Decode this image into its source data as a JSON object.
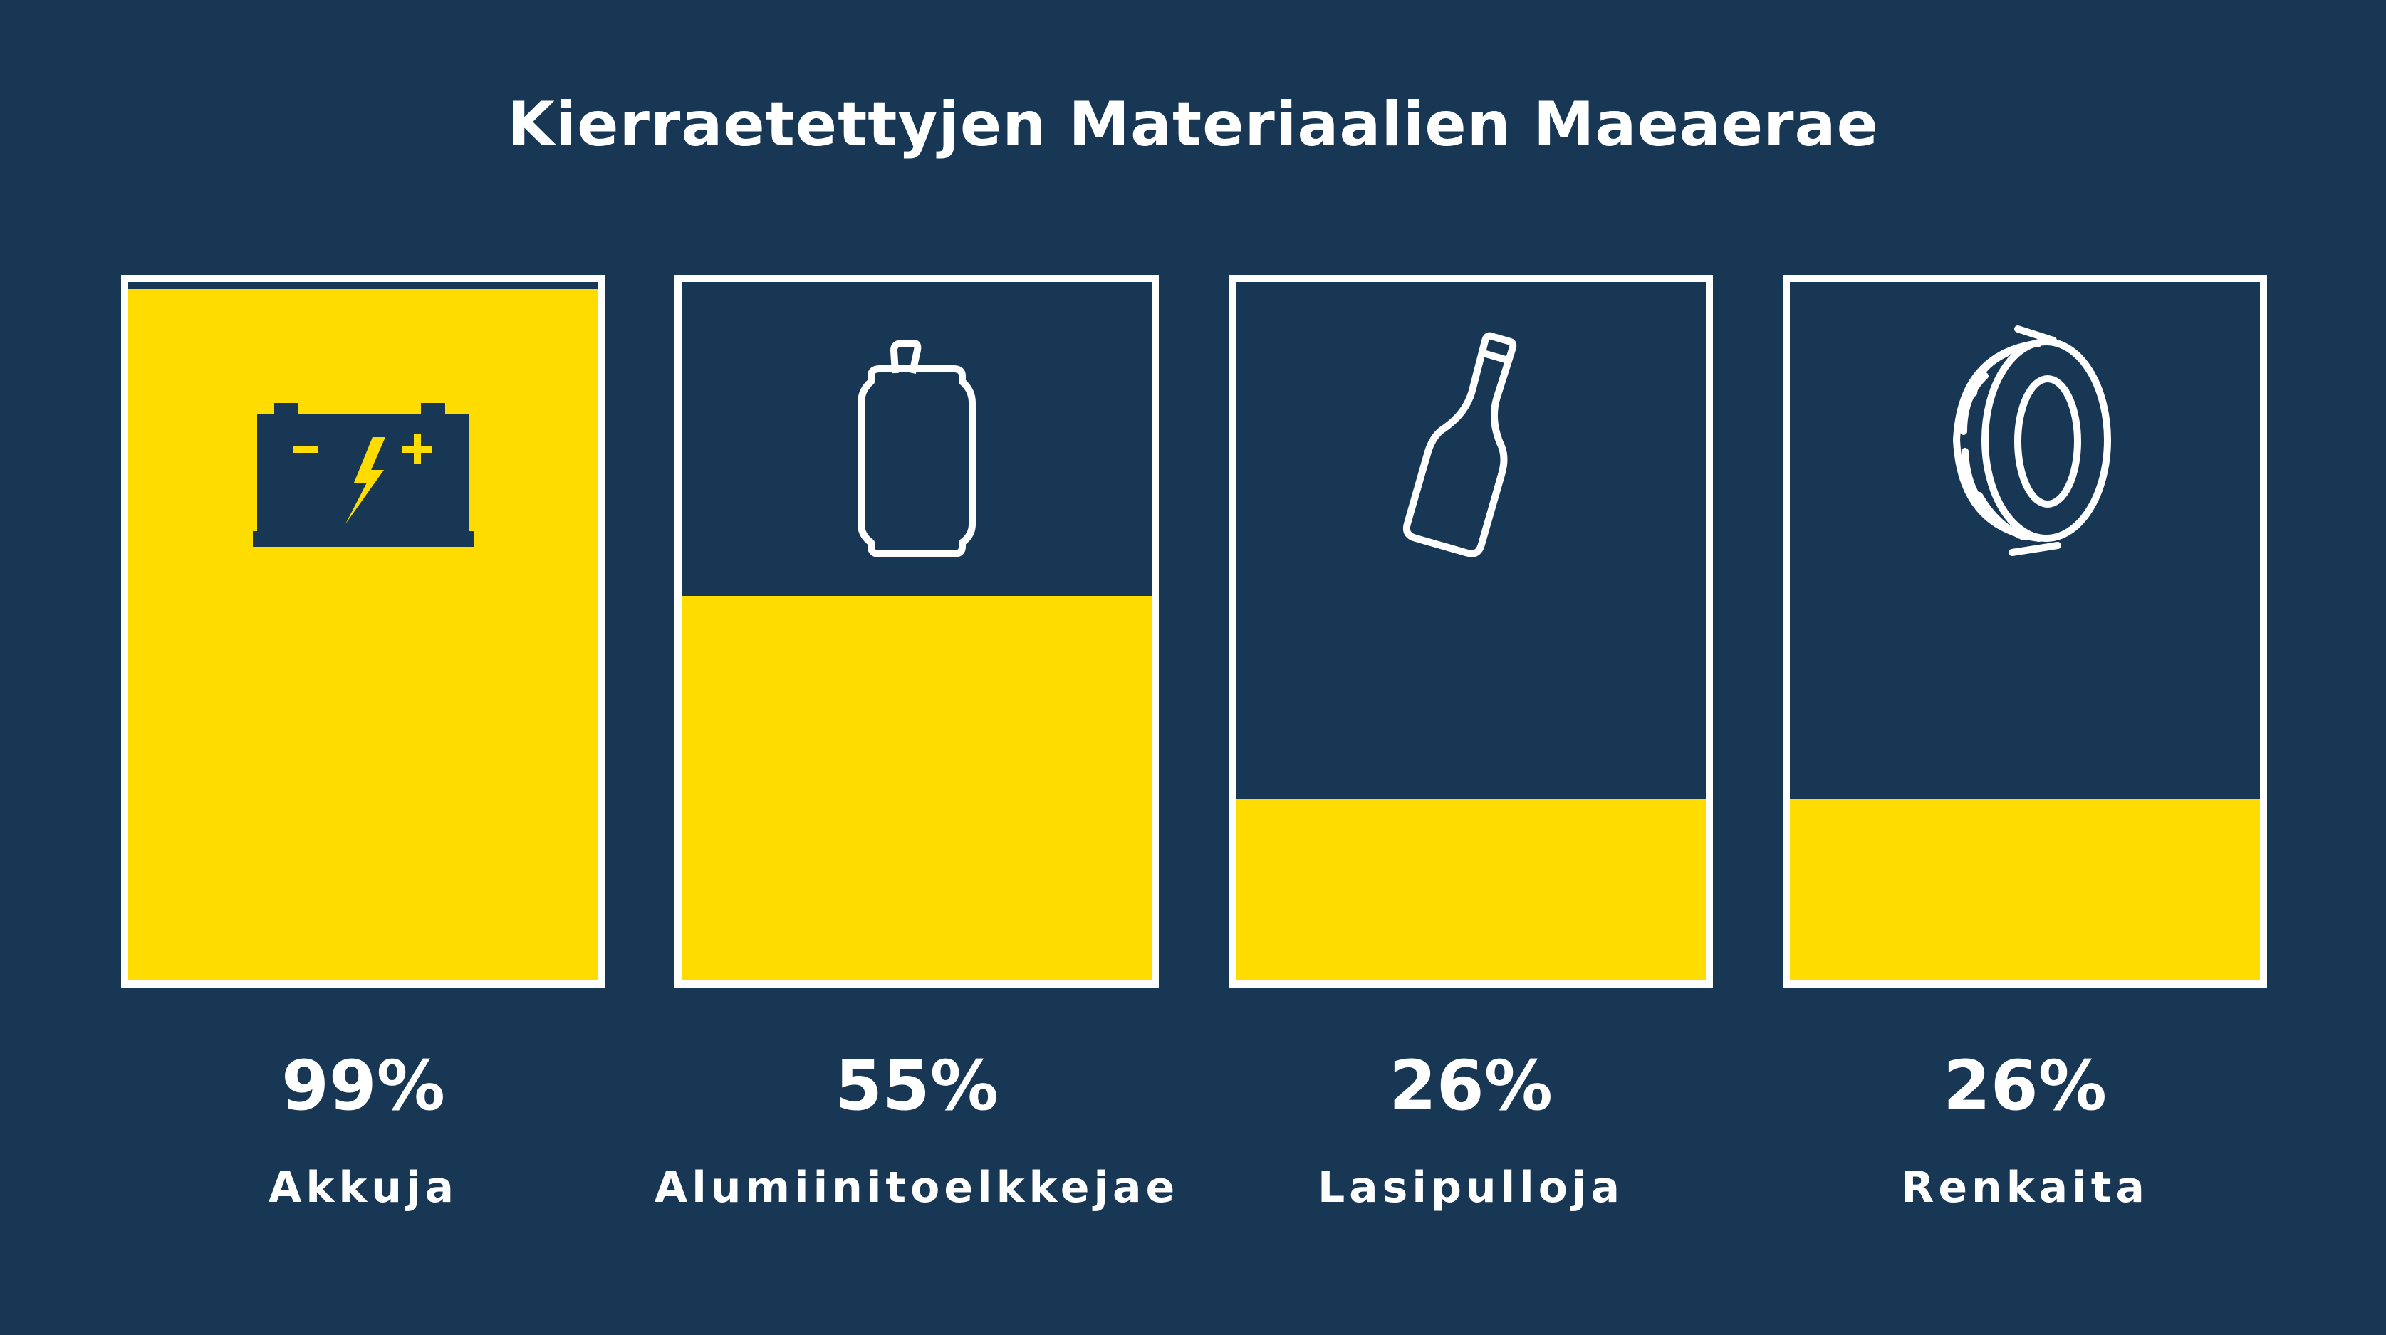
{
  "colors": {
    "background": "#173755",
    "fill": "#ffdc00",
    "border": "#ffffff",
    "text": "#ffffff"
  },
  "chart_data": {
    "type": "bar",
    "title": "Kierraetettyjen Materiaalien Maeaerae",
    "categories": [
      "Akkuja",
      "Alumiinitoelkkejae",
      "Lasipulloja",
      "Renkaita"
    ],
    "values": [
      99,
      55,
      26,
      26
    ],
    "value_labels": [
      "99%",
      "55%",
      "26%",
      "26%"
    ],
    "icons": [
      "battery-icon",
      "can-icon",
      "bottle-icon",
      "tire-icon"
    ],
    "ylim": [
      0,
      100
    ]
  }
}
